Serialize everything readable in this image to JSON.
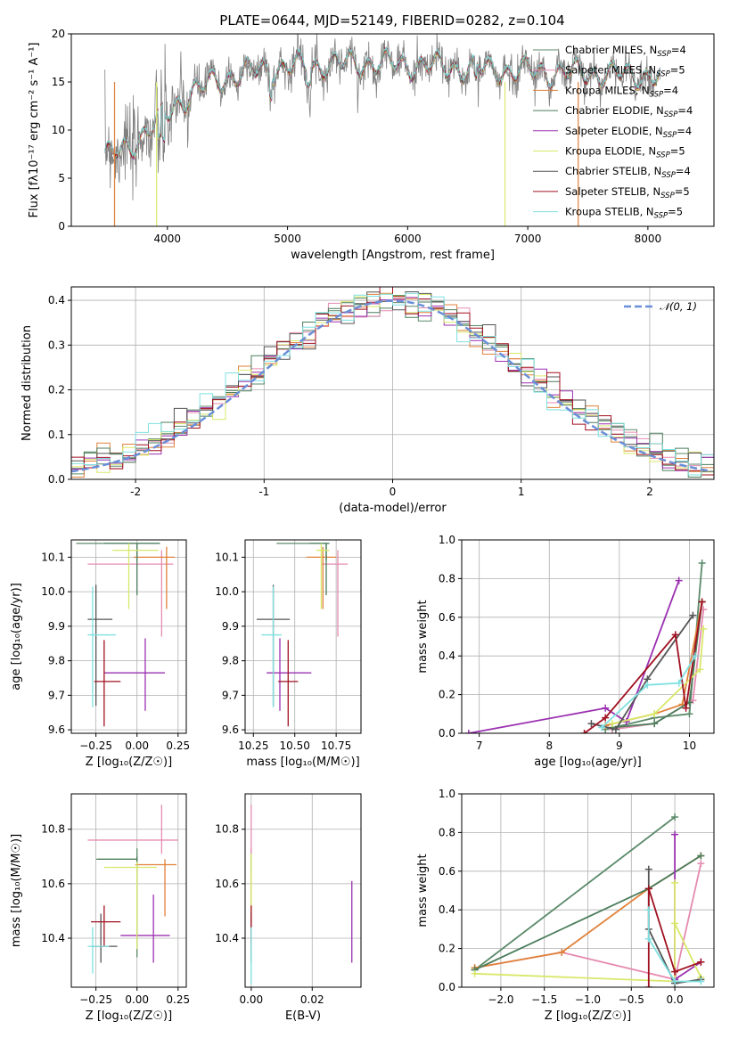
{
  "title": "PLATE=0644, MJD=52149, FIBERID=0282, z=0.104",
  "colors": [
    "#5b8a6a",
    "#e58bb0",
    "#e0813a",
    "#4b7d5b",
    "#9b30b0",
    "#d8e86a",
    "#555555",
    "#a01020",
    "#7fe0e0"
  ],
  "chart_data": [
    {
      "id": "spectrum",
      "type": "line",
      "xlabel": "wavelength [Angstrom, rest frame]",
      "ylabel": "Flux [fλ10⁻¹⁷ erg cm⁻² s⁻¹ A⁻¹]",
      "xlim": [
        3200,
        8550
      ],
      "ylim": [
        0,
        20
      ],
      "xticks": [
        4000,
        5000,
        6000,
        7000,
        8000
      ],
      "yticks": [
        0,
        5,
        10,
        15,
        20
      ],
      "x_range_data": [
        3480,
        8100
      ],
      "legend_position": "top-right",
      "series": [
        {
          "name": "Chabrier MILES, N_SSP=4",
          "label": "Chabrier MILES, N",
          "sub": "SSP",
          "suffix": "=4"
        },
        {
          "name": "Salpeter MILES, N_SSP=5",
          "label": "Salpeter MILES, N",
          "sub": "SSP",
          "suffix": "=5"
        },
        {
          "name": "Kroupa MILES, N_SSP=4",
          "label": "Kroupa MILES, N",
          "sub": "SSP",
          "suffix": "=4"
        },
        {
          "name": "Chabrier ELODIE, N_SSP=4",
          "label": "Chabrier ELODIE, N",
          "sub": "SSP",
          "suffix": "=4"
        },
        {
          "name": "Salpeter ELODIE, N_SSP=4",
          "label": "Salpeter ELODIE, N",
          "sub": "SSP",
          "suffix": "=4"
        },
        {
          "name": "Kroupa ELODIE, N_SSP=5",
          "label": "Kroupa ELODIE, N",
          "sub": "SSP",
          "suffix": "=5"
        },
        {
          "name": "Chabrier STELIB, N_SSP=4",
          "label": "Chabrier STELIB, N",
          "sub": "SSP",
          "suffix": "=4"
        },
        {
          "name": "Salpeter STELIB, N_SSP=5",
          "label": "Salpeter STELIB, N",
          "sub": "SSP",
          "suffix": "=5"
        },
        {
          "name": "Kroupa STELIB, N_SSP=5",
          "label": "Kroupa STELIB, N",
          "sub": "SSP",
          "suffix": "=5"
        }
      ],
      "continuum": [
        [
          3480,
          7
        ],
        [
          3700,
          8.5
        ],
        [
          3900,
          10.5
        ],
        [
          4100,
          13
        ],
        [
          4400,
          15.2
        ],
        [
          4800,
          16.3
        ],
        [
          5200,
          16.7
        ],
        [
          5600,
          17
        ],
        [
          6000,
          16.8
        ],
        [
          6500,
          16.4
        ],
        [
          7000,
          16.1
        ],
        [
          7500,
          15.9
        ],
        [
          8100,
          15.6
        ]
      ]
    },
    {
      "id": "residuals",
      "type": "histogram",
      "xlabel": "(data-model)/error",
      "ylabel": "Normed distribution",
      "xlim": [
        -2.5,
        2.5
      ],
      "ylim": [
        0,
        0.43
      ],
      "xticks": [
        -2,
        -1,
        0,
        1,
        2
      ],
      "yticks": [
        0.0,
        0.1,
        0.2,
        0.3,
        0.4
      ],
      "bin_width": 0.1,
      "reference_curve": {
        "name": "N(0,1)",
        "mean": 0,
        "sigma": 1
      },
      "legend_label": "𝒩(0, 1)",
      "legend_position": "top-right"
    },
    {
      "id": "z-age",
      "type": "errorbar",
      "xlabel": "Z [log₁₀(Z/Z☉)]",
      "ylabel": "age  [log₁₀(age/yr)]",
      "xlim": [
        -0.4,
        0.3
      ],
      "ylim": [
        9.59,
        10.15
      ],
      "xticks": [
        -0.25,
        0.0,
        0.25
      ],
      "xticklabels": [
        "−0.25",
        "0.00",
        "0.25"
      ],
      "yticks": [
        9.6,
        9.7,
        9.8,
        9.9,
        10.0,
        10.1
      ],
      "yticklabels": [
        "9.6",
        "9.7",
        "9.8",
        "9.9",
        "10.0",
        "10.1"
      ],
      "points": [
        {
          "x": 0.0,
          "y": 10.14,
          "xerr": [
            0.37,
            0.14
          ],
          "yerr": [
            0.05,
            0.0
          ]
        },
        {
          "x": 0.15,
          "y": 10.08,
          "xerr": [
            0.45,
            0.07
          ],
          "yerr": [
            0.21,
            0.04
          ]
        },
        {
          "x": 0.18,
          "y": 10.1,
          "xerr": [
            0.2,
            0.05
          ],
          "yerr": [
            0.15,
            0.03
          ]
        },
        {
          "x": 0.0,
          "y": 10.14,
          "xerr": [
            0.2,
            0.14
          ],
          "yerr": [
            0.15,
            0.0
          ]
        },
        {
          "x": 0.05,
          "y": 9.765,
          "xerr": [
            0.25,
            0.12
          ],
          "yerr": [
            0.11,
            0.1
          ]
        },
        {
          "x": -0.05,
          "y": 10.12,
          "xerr": [
            0.1,
            0.18
          ],
          "yerr": [
            0.17,
            0.02
          ]
        },
        {
          "x": -0.25,
          "y": 9.92,
          "xerr": [
            0.05,
            0.1
          ],
          "yerr": [
            0.25,
            0.1
          ]
        },
        {
          "x": -0.2,
          "y": 9.74,
          "xerr": [
            0.06,
            0.1
          ],
          "yerr": [
            0.13,
            0.12
          ]
        },
        {
          "x": -0.27,
          "y": 9.875,
          "xerr": [
            0.03,
            0.14
          ],
          "yerr": [
            0.21,
            0.14
          ]
        }
      ]
    },
    {
      "id": "mass-age",
      "type": "errorbar",
      "xlabel": "mass [log₁₀(M/M☉)]",
      "ylabel": "",
      "xlim": [
        10.2,
        10.9
      ],
      "ylim": [
        9.59,
        10.15
      ],
      "xticks": [
        10.25,
        10.5,
        10.75
      ],
      "xticklabels": [
        "10.25",
        "10.50",
        "10.75"
      ],
      "yticks": [
        9.6,
        9.7,
        9.8,
        9.9,
        10.0,
        10.1
      ],
      "yticklabels": [
        "9.6",
        "9.7",
        "9.8",
        "9.9",
        "10.0",
        "10.1"
      ],
      "points": [
        {
          "x": 10.69,
          "y": 10.14,
          "xerr": [
            0.3,
            0.01
          ],
          "yerr": [
            0.05,
            0.0
          ]
        },
        {
          "x": 10.76,
          "y": 10.08,
          "xerr": [
            0.1,
            0.06
          ],
          "yerr": [
            0.21,
            0.04
          ]
        },
        {
          "x": 10.67,
          "y": 10.1,
          "xerr": [
            0.1,
            0.08
          ],
          "yerr": [
            0.15,
            0.03
          ]
        },
        {
          "x": 10.69,
          "y": 10.14,
          "xerr": [
            0.1,
            0.02
          ],
          "yerr": [
            0.15,
            0.0
          ]
        },
        {
          "x": 10.41,
          "y": 9.765,
          "xerr": [
            0.08,
            0.19
          ],
          "yerr": [
            0.11,
            0.1
          ]
        },
        {
          "x": 10.66,
          "y": 10.12,
          "xerr": [
            0.03,
            0.05
          ],
          "yerr": [
            0.17,
            0.02
          ]
        },
        {
          "x": 10.37,
          "y": 9.92,
          "xerr": [
            0.1,
            0.1
          ],
          "yerr": [
            0.25,
            0.1
          ]
        },
        {
          "x": 10.46,
          "y": 9.74,
          "xerr": [
            0.06,
            0.06
          ],
          "yerr": [
            0.13,
            0.12
          ]
        },
        {
          "x": 10.37,
          "y": 9.875,
          "xerr": [
            0.07,
            0.05
          ],
          "yerr": [
            0.21,
            0.14
          ]
        }
      ]
    },
    {
      "id": "age-weight",
      "type": "line",
      "xlabel": "age  [log₁₀(age/yr)]",
      "ylabel": "mass weight",
      "xlim": [
        6.75,
        10.35
      ],
      "ylim": [
        0,
        1
      ],
      "xticks": [
        7,
        8,
        9,
        10
      ],
      "yticks": [
        0.0,
        0.2,
        0.4,
        0.6,
        0.8,
        1.0
      ],
      "series": [
        {
          "points": [
            [
              8.8,
              0.02
            ],
            [
              9.5,
              0.08
            ],
            [
              10.0,
              0.1
            ],
            [
              10.18,
              0.88
            ]
          ]
        },
        {
          "points": [
            [
              8.9,
              0.02
            ],
            [
              9.5,
              0.05
            ],
            [
              10.05,
              0.17
            ],
            [
              10.2,
              0.64
            ]
          ]
        },
        {
          "points": [
            [
              8.8,
              0.04
            ],
            [
              9.5,
              0.1
            ],
            [
              9.9,
              0.15
            ],
            [
              10.18,
              0.68
            ]
          ]
        },
        {
          "points": [
            [
              8.9,
              0.03
            ],
            [
              9.5,
              0.05
            ],
            [
              10.0,
              0.16
            ],
            [
              10.18,
              0.68
            ]
          ]
        },
        {
          "points": [
            [
              6.85,
              0.0
            ],
            [
              8.8,
              0.13
            ],
            [
              9.1,
              0.06
            ],
            [
              9.85,
              0.79
            ]
          ]
        },
        {
          "points": [
            [
              8.9,
              0.05
            ],
            [
              9.5,
              0.1
            ],
            [
              10.15,
              0.33
            ],
            [
              10.2,
              0.54
            ]
          ]
        },
        {
          "points": [
            [
              8.6,
              0.05
            ],
            [
              8.95,
              0.02
            ],
            [
              9.4,
              0.28
            ],
            [
              10.05,
              0.61
            ]
          ]
        },
        {
          "points": [
            [
              8.5,
              0.0
            ],
            [
              8.8,
              0.08
            ],
            [
              9.8,
              0.51
            ],
            [
              9.95,
              0.13
            ],
            [
              10.18,
              0.68
            ]
          ]
        },
        {
          "points": [
            [
              8.75,
              0.03
            ],
            [
              9.4,
              0.25
            ],
            [
              9.85,
              0.26
            ],
            [
              10.08,
              0.4
            ]
          ]
        }
      ]
    },
    {
      "id": "z-mass",
      "type": "errorbar",
      "xlabel": "Z [log₁₀(Z/Z☉)]",
      "ylabel": "mass [log₁₀(M/M☉)]",
      "xlim": [
        -0.4,
        0.3
      ],
      "ylim": [
        10.22,
        10.93
      ],
      "xticks": [
        -0.25,
        0.0,
        0.25
      ],
      "xticklabels": [
        "−0.25",
        "0.00",
        "0.25"
      ],
      "yticks": [
        10.4,
        10.6,
        10.8
      ],
      "yticklabels": [
        "10.4",
        "10.6",
        "10.8"
      ],
      "points": [
        {
          "x": 0.0,
          "y": 10.69,
          "xerr": [
            0.25,
            0.0
          ],
          "yerr": [
            0.36,
            0.04
          ]
        },
        {
          "x": 0.15,
          "y": 10.76,
          "xerr": [
            0.45,
            0.1
          ],
          "yerr": [
            0.05,
            0.13
          ]
        },
        {
          "x": 0.17,
          "y": 10.67,
          "xerr": [
            0.18,
            0.07
          ],
          "yerr": [
            0.19,
            0.02
          ]
        },
        {
          "x": 0.0,
          "y": 10.69,
          "xerr": [
            0.24,
            0.0
          ],
          "yerr": [
            0.05,
            0.01
          ]
        },
        {
          "x": 0.1,
          "y": 10.41,
          "xerr": [
            0.2,
            0.1
          ],
          "yerr": [
            0.1,
            0.15
          ]
        },
        {
          "x": 0.0,
          "y": 10.66,
          "xerr": [
            0.2,
            0.12
          ],
          "yerr": [
            0.3,
            0.02
          ]
        },
        {
          "x": -0.22,
          "y": 10.37,
          "xerr": [
            0.06,
            0.1
          ],
          "yerr": [
            0.06,
            0.12
          ]
        },
        {
          "x": -0.2,
          "y": 10.46,
          "xerr": [
            0.08,
            0.1
          ],
          "yerr": [
            0.09,
            0.06
          ]
        },
        {
          "x": -0.27,
          "y": 10.37,
          "xerr": [
            0.03,
            0.1
          ],
          "yerr": [
            0.1,
            0.07
          ]
        }
      ]
    },
    {
      "id": "ebv-mass",
      "type": "errorbar",
      "xlabel": "E(B-V)",
      "ylabel": "",
      "xlim": [
        -0.002,
        0.036
      ],
      "ylim": [
        10.22,
        10.93
      ],
      "xticks": [
        0.0,
        0.02
      ],
      "xticklabels": [
        "0.00",
        "0.02"
      ],
      "yticks": [
        10.4,
        10.6,
        10.8
      ],
      "yticklabels": [
        "10.4",
        "10.6",
        "10.8"
      ],
      "points": [
        {
          "x": 0.0,
          "y": 10.69,
          "xerr": [
            0,
            0
          ],
          "yerr": [
            0.36,
            0.04
          ]
        },
        {
          "x": 0.0,
          "y": 10.76,
          "xerr": [
            0,
            0
          ],
          "yerr": [
            0.05,
            0.13
          ]
        },
        {
          "x": 0.0,
          "y": 10.67,
          "xerr": [
            0,
            0
          ],
          "yerr": [
            0.19,
            0.02
          ]
        },
        {
          "x": 0.0,
          "y": 10.69,
          "xerr": [
            0,
            0
          ],
          "yerr": [
            0.05,
            0.01
          ]
        },
        {
          "x": 0.033,
          "y": 10.41,
          "xerr": [
            0,
            0
          ],
          "yerr": [
            0.1,
            0.2
          ]
        },
        {
          "x": 0.0,
          "y": 10.66,
          "xerr": [
            0,
            0
          ],
          "yerr": [
            0.3,
            0.05
          ]
        },
        {
          "x": 0.0,
          "y": 10.37,
          "xerr": [
            0,
            0
          ],
          "yerr": [
            0.06,
            0.12
          ]
        },
        {
          "x": 0.0,
          "y": 10.46,
          "xerr": [
            0,
            0
          ],
          "yerr": [
            0.09,
            0.06
          ]
        },
        {
          "x": 0.0,
          "y": 10.37,
          "xerr": [
            0,
            0
          ],
          "yerr": [
            0.14,
            0.07
          ]
        }
      ]
    },
    {
      "id": "z-weight",
      "type": "line",
      "xlabel": "Z [log₁₀(Z/Z☉)]",
      "ylabel": "mass weight",
      "xlim": [
        -2.45,
        0.45
      ],
      "ylim": [
        0,
        1
      ],
      "xticks": [
        -2.0,
        -1.5,
        -1.0,
        -0.5,
        0.0
      ],
      "xticklabels": [
        "−2.0",
        "−1.5",
        "−1.0",
        "−0.5",
        "0.0"
      ],
      "yticks": [
        0.0,
        0.2,
        0.4,
        0.6,
        0.8,
        1.0
      ],
      "series": [
        {
          "points": [
            [
              -2.3,
              0.09
            ],
            [
              0.0,
              0.88
            ]
          ]
        },
        {
          "points": [
            [
              -2.3,
              0.1
            ],
            [
              -1.3,
              0.18
            ],
            [
              0.0,
              0.04
            ],
            [
              0.3,
              0.64
            ]
          ]
        },
        {
          "points": [
            [
              -2.3,
              0.1
            ],
            [
              -1.3,
              0.18
            ],
            [
              -0.3,
              0.51
            ],
            [
              0.3,
              0.68
            ]
          ]
        },
        {
          "points": [
            [
              -2.3,
              0.09
            ],
            [
              -0.3,
              0.51
            ],
            [
              0.3,
              0.68
            ]
          ]
        },
        {
          "points": [
            [
              0.0,
              0.79
            ],
            [
              0.0,
              0.04
            ],
            [
              0.3,
              0.13
            ]
          ]
        },
        {
          "points": [
            [
              -2.3,
              0.07
            ],
            [
              0.0,
              0.03
            ],
            [
              0.0,
              0.54
            ],
            [
              0.0,
              0.33
            ],
            [
              0.3,
              0.05
            ]
          ]
        },
        {
          "points": [
            [
              -0.3,
              0.61
            ],
            [
              -0.3,
              0.3
            ],
            [
              0.0,
              0.02
            ],
            [
              0.3,
              0.04
            ]
          ]
        },
        {
          "points": [
            [
              -0.3,
              0.0
            ],
            [
              -0.3,
              0.51
            ],
            [
              0.0,
              0.08
            ],
            [
              0.3,
              0.13
            ]
          ]
        },
        {
          "points": [
            [
              -0.3,
              0.4
            ],
            [
              -0.3,
              0.25
            ],
            [
              0.0,
              0.03
            ],
            [
              0.3,
              0.03
            ]
          ]
        }
      ]
    }
  ]
}
